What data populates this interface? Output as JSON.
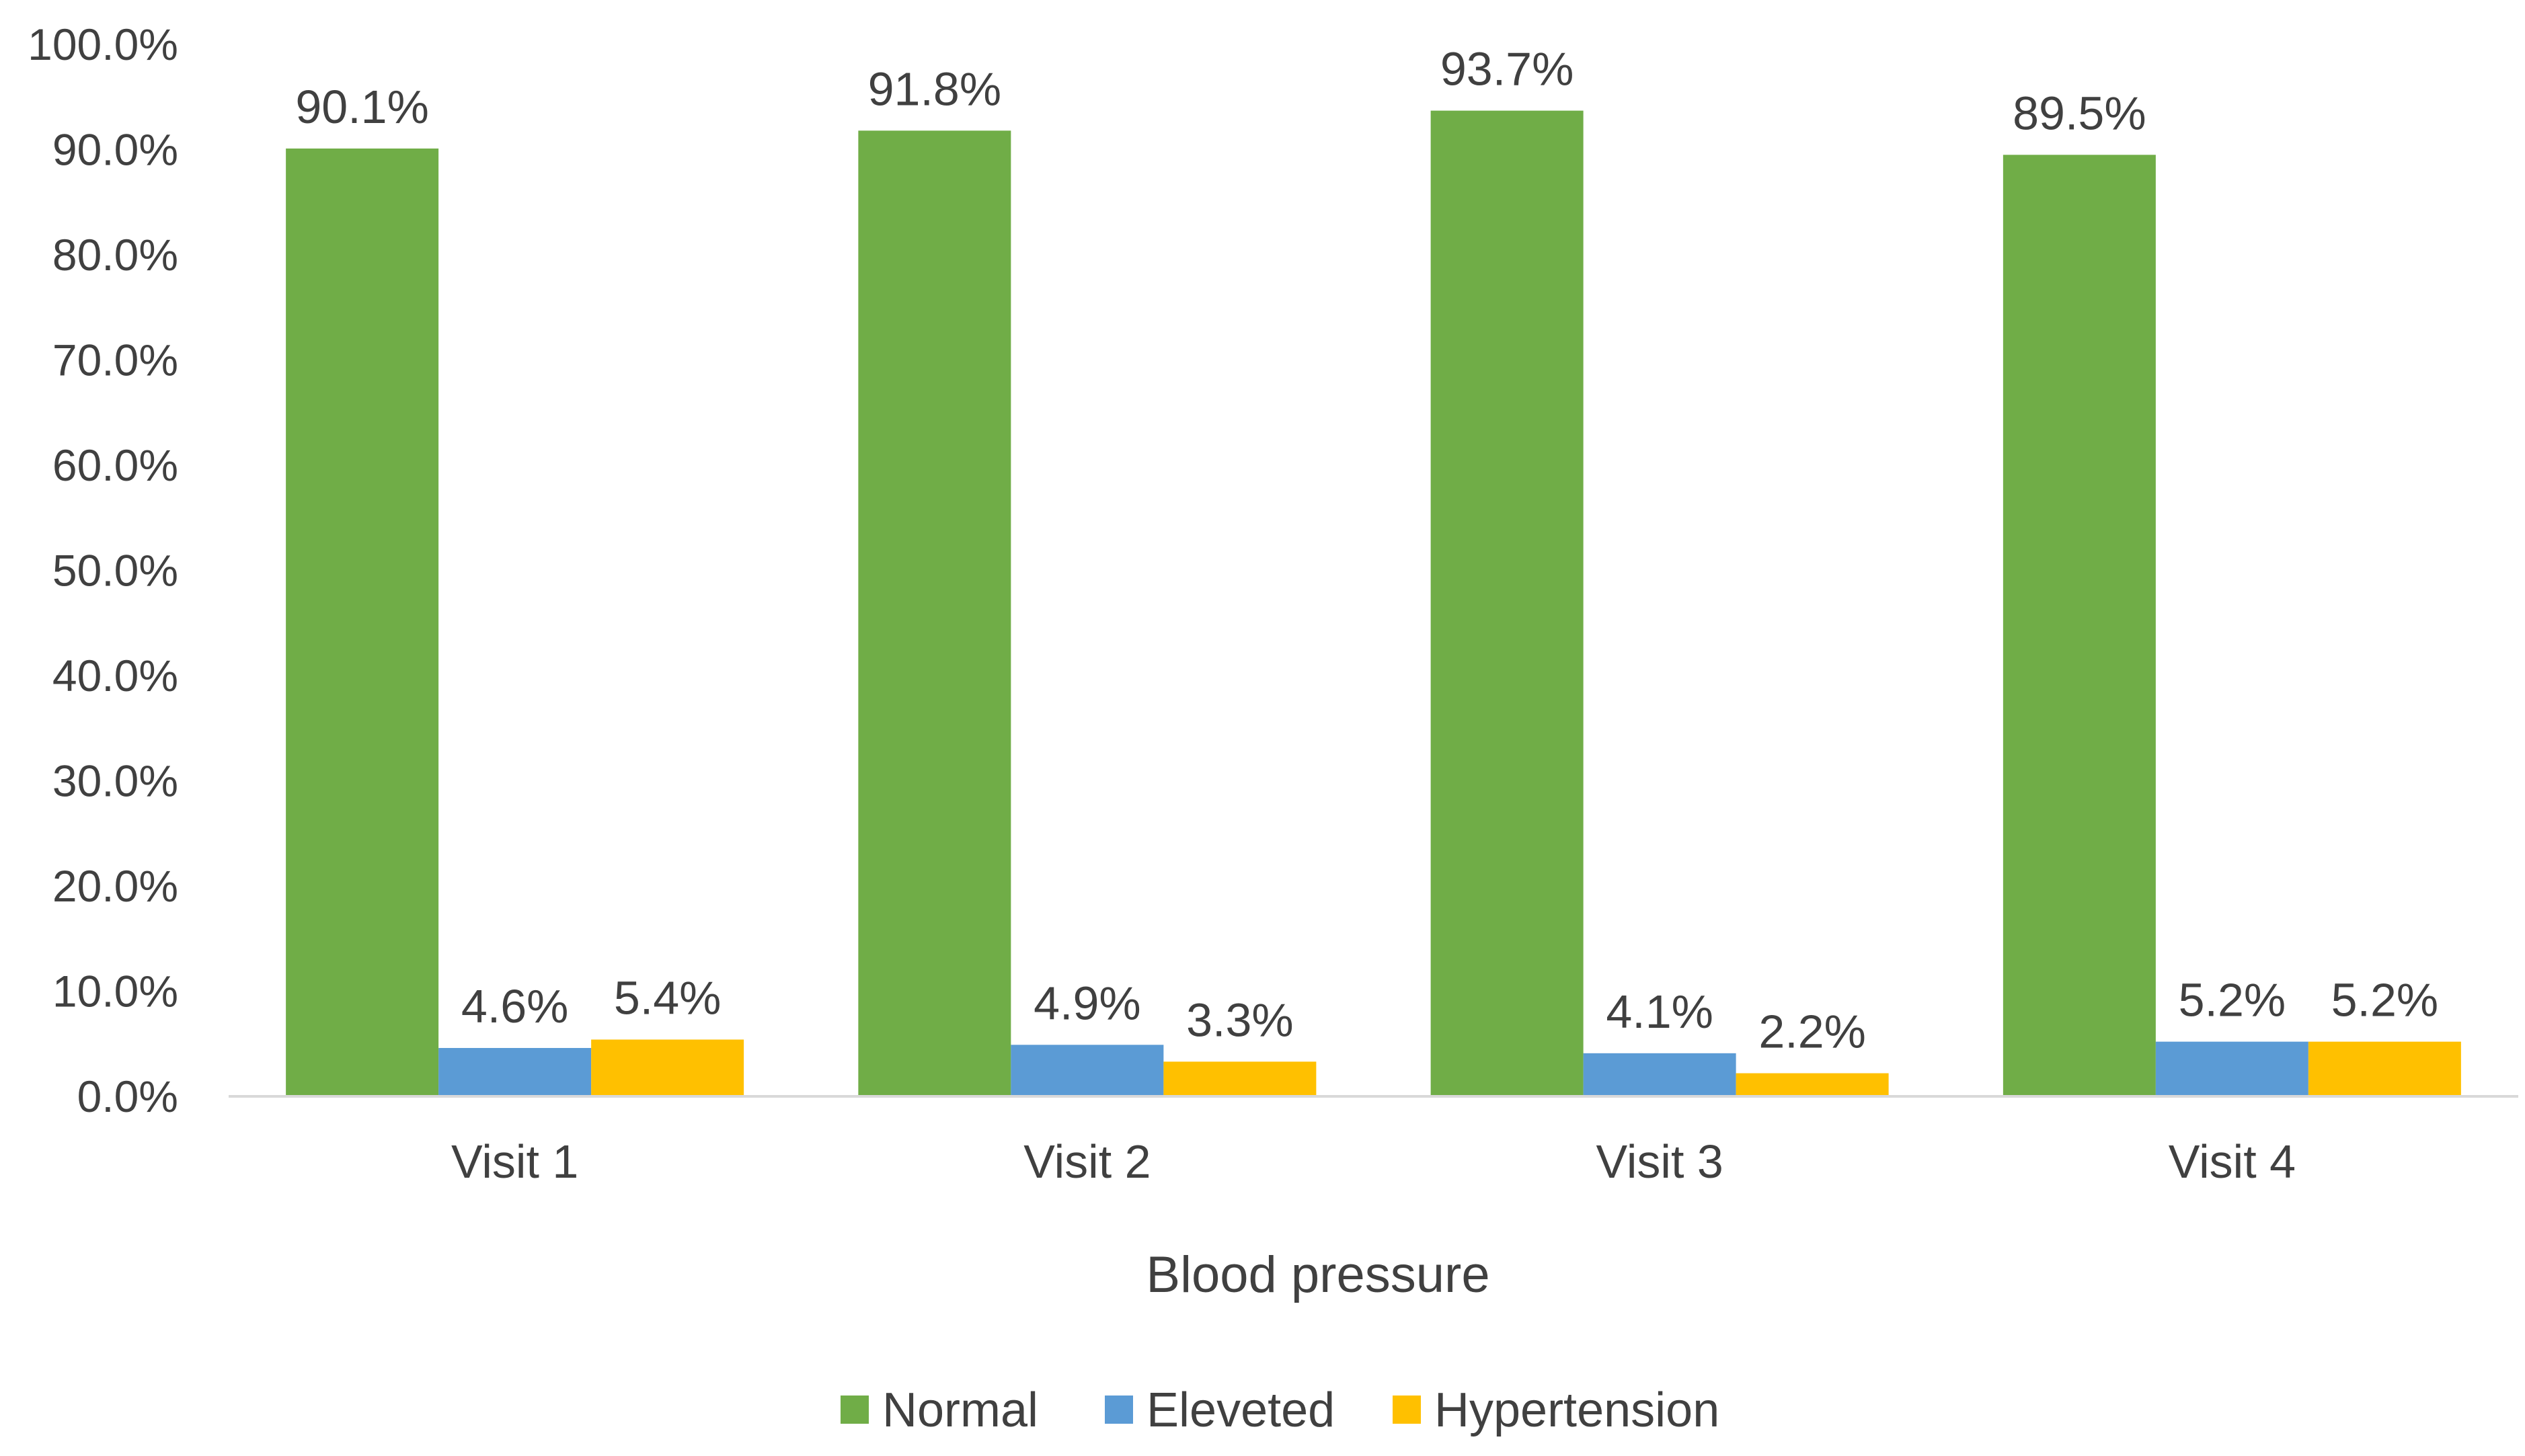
{
  "chart_data": {
    "type": "bar",
    "title": "",
    "xlabel": "Blood pressure",
    "ylabel": "",
    "ylim": [
      0,
      100
    ],
    "y_ticks": [
      "0.0%",
      "10.0%",
      "20.0%",
      "30.0%",
      "40.0%",
      "50.0%",
      "60.0%",
      "70.0%",
      "80.0%",
      "90.0%",
      "100.0%"
    ],
    "categories": [
      "Visit 1",
      "Visit 2",
      "Visit 3",
      "Visit 4"
    ],
    "series": [
      {
        "name": "Normal",
        "color": "#70AD47",
        "values": [
          90.1,
          91.8,
          93.7,
          89.5
        ],
        "labels": [
          "90.1%",
          "91.8%",
          "93.7%",
          "89.5%"
        ]
      },
      {
        "name": "Eleveted",
        "color": "#5B9BD5",
        "values": [
          4.6,
          4.9,
          4.1,
          5.2
        ],
        "labels": [
          "4.6%",
          "4.9%",
          "4.1%",
          "5.2%"
        ]
      },
      {
        "name": "Hypertension",
        "color": "#FFC000",
        "values": [
          5.4,
          3.3,
          2.2,
          5.2
        ],
        "labels": [
          "5.4%",
          "3.3%",
          "2.2%",
          "5.2%"
        ]
      }
    ],
    "grid": false,
    "legend_position": "bottom"
  }
}
